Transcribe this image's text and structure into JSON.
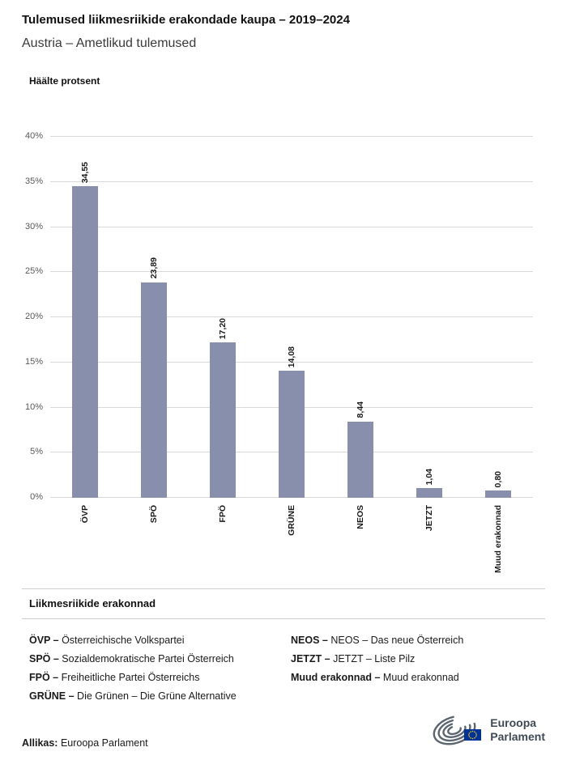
{
  "header": {
    "title": "Tulemused liikmesriikide erakondade kaupa – 2019–2024",
    "subtitle": "Austria – Ametlikud tulemused"
  },
  "chart_data": {
    "type": "bar",
    "title": "Tulemused liikmesriikide erakondade kaupa – 2019–2024",
    "subtitle": "Austria – Ametlikud tulemused",
    "ylabel": "Häälte protsent",
    "xlabel": "",
    "categories": [
      "ÖVP",
      "SPÖ",
      "FPÖ",
      "GRÜNE",
      "NEOS",
      "JETZT",
      "Muud erakonnad"
    ],
    "values": [
      34.55,
      23.89,
      17.2,
      14.08,
      8.44,
      1.04,
      0.8
    ],
    "value_labels": [
      "34,55",
      "23,89",
      "17,20",
      "14,08",
      "8,44",
      "1,04",
      "0,80"
    ],
    "ylim": [
      0,
      40
    ],
    "yticks": [
      0,
      5,
      10,
      15,
      20,
      25,
      30,
      35,
      40
    ],
    "ytick_suffix": "%",
    "grid": true,
    "bar_color": "#878FAC",
    "legend_position": "bottom"
  },
  "legend": {
    "heading": "Liikmesriikide erakonnad",
    "left": [
      {
        "abbr": "ÖVP –",
        "name": "Österreichische Volkspartei"
      },
      {
        "abbr": "SPÖ –",
        "name": "Sozialdemokratische Partei Österreich"
      },
      {
        "abbr": "FPÖ –",
        "name": "Freiheitliche Partei Österreichs"
      },
      {
        "abbr": "GRÜNE –",
        "name": "Die Grünen – Die Grüne Alternative"
      }
    ],
    "right": [
      {
        "abbr": "NEOS –",
        "name": "NEOS – Das neue Österreich"
      },
      {
        "abbr": "JETZT –",
        "name": "JETZT – Liste Pilz"
      },
      {
        "abbr": "Muud erakonnad –",
        "name": "Muud erakonnad"
      }
    ]
  },
  "footer": {
    "source_label": "Allikas:",
    "source_value": "Euroopa Parlament",
    "logo_line1": "Euroopa",
    "logo_line2": "Parlament"
  }
}
